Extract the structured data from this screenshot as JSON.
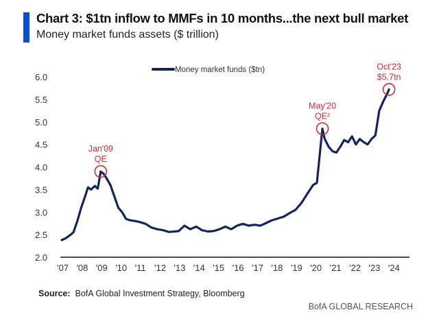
{
  "header": {
    "title": "Chart 3: $1tn inflow to MMFs in 10 months...the next bull market",
    "subtitle": "Money market funds assets ($ trillion)"
  },
  "footer": {
    "source_label": "Source:",
    "source_text": "BofA Global Investment Strategy, Bloomberg",
    "brand": "BofA GLOBAL RESEARCH"
  },
  "colors": {
    "line": "#14245e",
    "annotation": "#d42a35",
    "accent_bar": "#0a4fc7",
    "axis": "#111111"
  },
  "chart_data": {
    "type": "line",
    "title": "Chart 3: $1tn inflow to MMFs in 10 months...the next bull market",
    "subtitle": "Money market funds assets ($ trillion)",
    "xlabel": "",
    "ylabel": "",
    "xlim": [
      2007,
      2025
    ],
    "ylim": [
      2.0,
      6.0
    ],
    "y_ticks": [
      "2.0",
      "2.5",
      "3.0",
      "3.5",
      "4.0",
      "4.5",
      "5.0",
      "5.5",
      "6.0"
    ],
    "x_ticks": [
      "'07",
      "'08",
      "'09",
      "'10",
      "'11",
      "'12",
      "'13",
      "'14",
      "'15",
      "'16",
      "'17",
      "'18",
      "'19",
      "'20",
      "'21",
      "'22",
      "'23",
      "'24"
    ],
    "grid": false,
    "legend": {
      "position": "top-center",
      "entries": [
        "Money market funds ($tn)"
      ]
    },
    "series": [
      {
        "name": "Money market funds ($tn)",
        "x": [
          2007.0,
          2007.2,
          2007.4,
          2007.6,
          2007.8,
          2008.0,
          2008.2,
          2008.35,
          2008.5,
          2008.7,
          2008.85,
          2009.0,
          2009.15,
          2009.3,
          2009.5,
          2009.7,
          2009.9,
          2010.1,
          2010.3,
          2010.5,
          2010.8,
          2011.0,
          2011.3,
          2011.6,
          2011.9,
          2012.2,
          2012.5,
          2012.8,
          2013.0,
          2013.3,
          2013.6,
          2013.9,
          2014.2,
          2014.5,
          2014.8,
          2015.1,
          2015.4,
          2015.7,
          2016.0,
          2016.3,
          2016.6,
          2016.9,
          2017.2,
          2017.5,
          2017.8,
          2018.1,
          2018.4,
          2018.7,
          2019.0,
          2019.3,
          2019.6,
          2019.9,
          2020.1,
          2020.25,
          2020.38,
          2020.5,
          2020.7,
          2020.9,
          2021.1,
          2021.3,
          2021.5,
          2021.7,
          2021.9,
          2022.1,
          2022.3,
          2022.5,
          2022.7,
          2022.9,
          2023.1,
          2023.3,
          2023.5,
          2023.7,
          2023.8
        ],
        "values": [
          2.38,
          2.42,
          2.48,
          2.55,
          2.8,
          3.1,
          3.35,
          3.55,
          3.5,
          3.58,
          3.52,
          3.9,
          3.85,
          3.75,
          3.6,
          3.35,
          3.1,
          3.0,
          2.85,
          2.82,
          2.8,
          2.78,
          2.74,
          2.66,
          2.62,
          2.6,
          2.56,
          2.57,
          2.58,
          2.7,
          2.62,
          2.68,
          2.6,
          2.57,
          2.58,
          2.62,
          2.68,
          2.62,
          2.7,
          2.74,
          2.7,
          2.72,
          2.7,
          2.76,
          2.82,
          2.86,
          2.9,
          2.98,
          3.05,
          3.2,
          3.4,
          3.6,
          3.65,
          4.3,
          4.85,
          4.62,
          4.45,
          4.35,
          4.32,
          4.45,
          4.6,
          4.55,
          4.68,
          4.5,
          4.62,
          4.55,
          4.5,
          4.62,
          4.7,
          5.25,
          5.45,
          5.62,
          5.72
        ]
      }
    ],
    "annotations": [
      {
        "label_line1": "Jan'09",
        "label_line2": "QE",
        "x": 2009.0,
        "y": 3.9
      },
      {
        "label_line1": "May'20",
        "label_line2": "QE²",
        "x": 2020.38,
        "y": 4.85
      },
      {
        "label_line1": "Oct'23",
        "label_line2": "$5.7tn",
        "x": 2023.8,
        "y": 5.72
      }
    ]
  }
}
